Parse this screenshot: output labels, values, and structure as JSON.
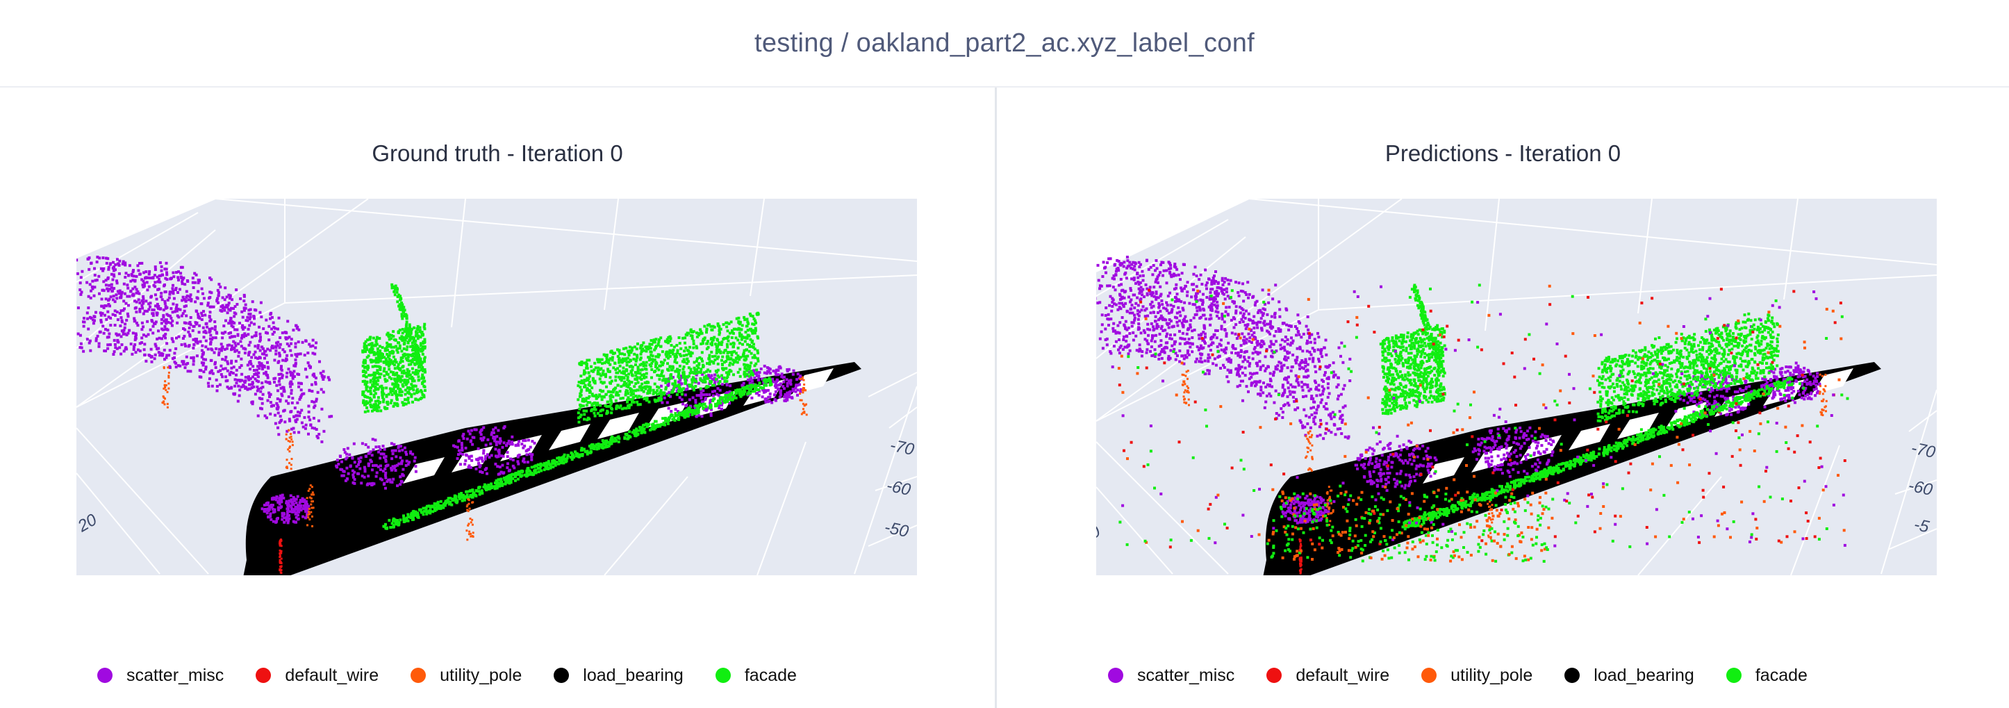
{
  "header": {
    "title": "testing / oakland_part2_ac.xyz_label_conf"
  },
  "colors": {
    "scatter_misc": "#a00ae0",
    "default_wire": "#ee1111",
    "utility_pole": "#ff5a0a",
    "load_bearing": "#000000",
    "facade": "#11ee11",
    "scene_bg": "#e5e9f2",
    "grid": "#ffffff"
  },
  "chart_data": [
    {
      "type": "scatter3d",
      "title": "Ground truth - Iteration 0",
      "axis_tick_labels": {
        "x": [
          "20"
        ],
        "y": [
          "-70",
          "-60",
          "-50"
        ]
      },
      "legend": {
        "placement": "bottom",
        "entries": [
          "scatter_misc",
          "default_wire",
          "utility_pole",
          "load_bearing",
          "facade"
        ]
      },
      "grid": true
    },
    {
      "type": "scatter3d",
      "title": "Predictions - Iteration 0",
      "axis_tick_labels": {
        "x": [
          "0"
        ],
        "y": [
          "-70",
          "-60",
          "-5"
        ]
      },
      "legend": {
        "placement": "bottom",
        "entries": [
          "scatter_misc",
          "default_wire",
          "utility_pole",
          "load_bearing",
          "facade"
        ]
      },
      "grid": true
    }
  ]
}
